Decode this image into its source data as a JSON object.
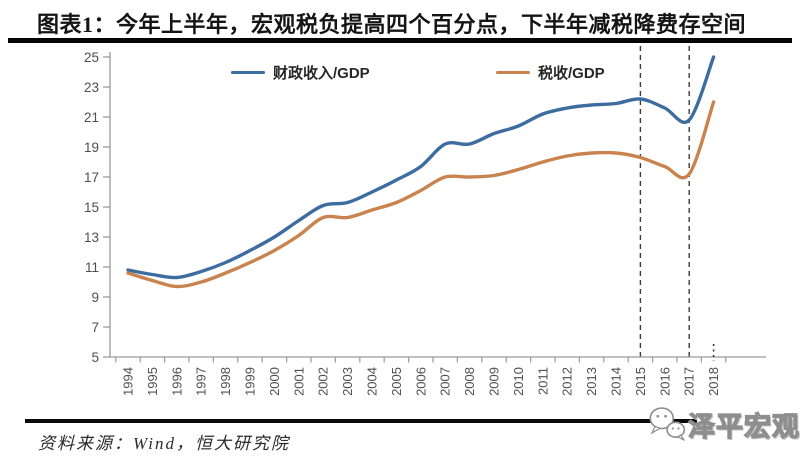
{
  "title": "图表1：今年上半年，宏观税负提高四个百分点，下半年减税降费存空间",
  "source": {
    "label": "资料来源：Wind，恒大研究院"
  },
  "brand": {
    "name": "泽平宏观",
    "icon": "wechat-chat-bubbles-icon"
  },
  "colors": {
    "fiscal_line": "#3d6ca0",
    "tax_line": "#c9834e",
    "dashed_guide": "#3a3a3a",
    "axis": "#9a9a9a",
    "tick_text": "#4f4f4f",
    "rule_black": "#0a0a0a"
  },
  "chart_data": {
    "type": "line",
    "title": "",
    "xlabel": "",
    "ylabel": "",
    "x": [
      1994,
      1995,
      1996,
      1997,
      1998,
      1999,
      2000,
      2001,
      2002,
      2003,
      2004,
      2005,
      2006,
      2007,
      2008,
      2009,
      2010,
      2011,
      2012,
      2013,
      2014,
      2015,
      2016,
      2017,
      2018
    ],
    "x_note": "2018 value is first-half 2018, marked with dotted tick on axis",
    "series": [
      {
        "name": "财政收入/GDP",
        "color": "#3d6ca0",
        "values": [
          10.8,
          10.5,
          10.3,
          10.7,
          11.3,
          12.1,
          13.0,
          14.1,
          15.1,
          15.3,
          16.0,
          16.8,
          17.7,
          19.2,
          19.2,
          19.9,
          20.4,
          21.2,
          21.6,
          21.8,
          21.9,
          22.2,
          21.6,
          20.8,
          25.0
        ]
      },
      {
        "name": "税收/GDP",
        "color": "#c9834e",
        "values": [
          10.6,
          10.1,
          9.7,
          10.0,
          10.6,
          11.3,
          12.1,
          13.1,
          14.3,
          14.3,
          14.8,
          15.3,
          16.1,
          17.0,
          17.0,
          17.1,
          17.5,
          18.0,
          18.4,
          18.6,
          18.6,
          18.3,
          17.7,
          17.2,
          22.0
        ]
      }
    ],
    "ylim": [
      5,
      25
    ],
    "yticks": [
      5,
      7,
      9,
      11,
      13,
      15,
      17,
      19,
      21,
      23,
      25
    ],
    "ytick_step": 2,
    "grid": false,
    "legend_position": "top",
    "dashed_vlines_x": [
      2015,
      2017
    ],
    "dotted_axis_marker_x": 2018
  }
}
